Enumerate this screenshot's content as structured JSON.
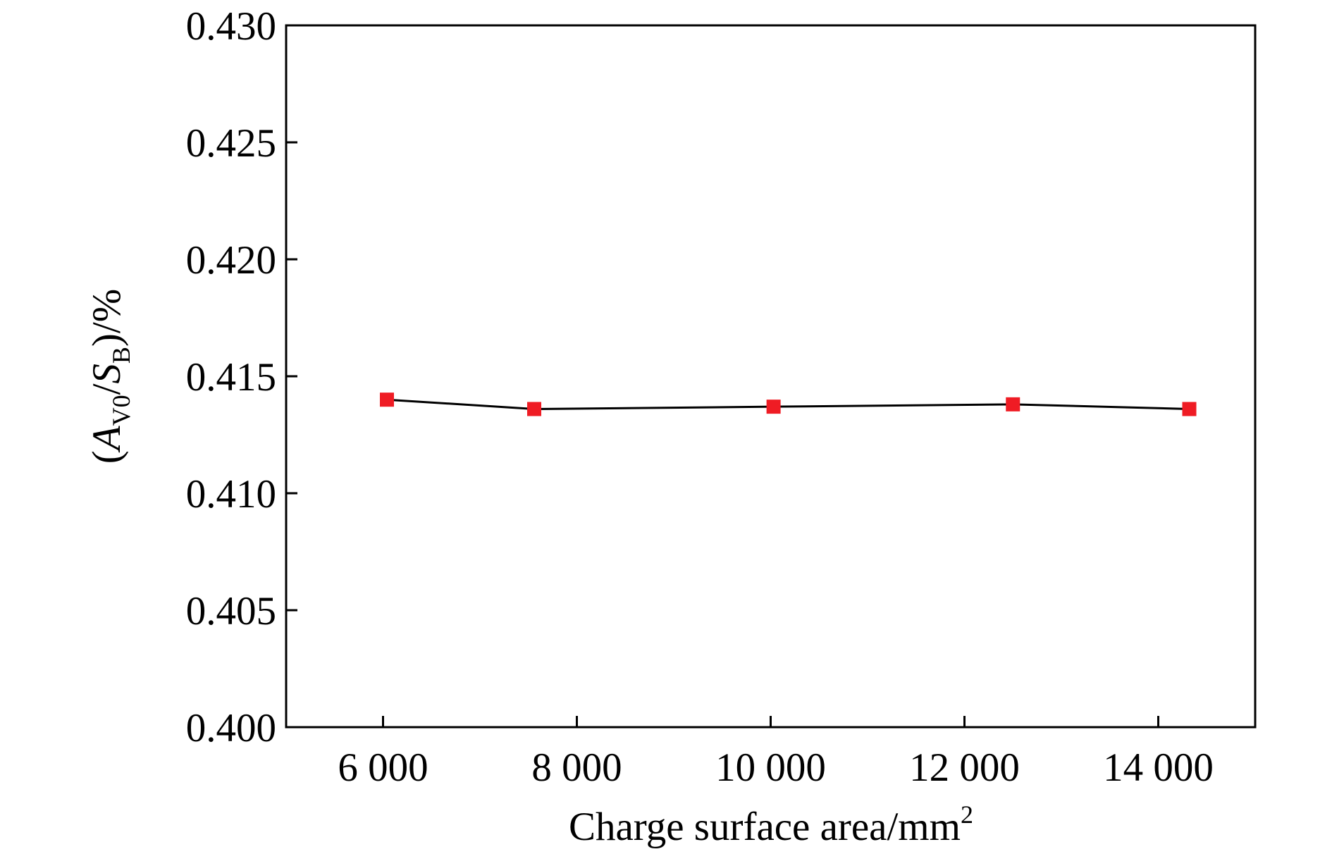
{
  "chart_data": {
    "type": "line",
    "title": "",
    "xlabel": {
      "text": "Charge surface area/mm",
      "superscript": "2"
    },
    "ylabel": {
      "open": "(",
      "a": "A",
      "a_sub": "V0",
      "slash": "/",
      "s": "S",
      "s_sub": "B",
      "close": ")/%"
    },
    "xlim": [
      5000,
      15000
    ],
    "ylim": [
      0.4,
      0.43
    ],
    "xticks": [
      6000,
      8000,
      10000,
      12000,
      14000
    ],
    "xtick_labels": [
      "6 000",
      "8 000",
      "10 000",
      "12 000",
      "14 000"
    ],
    "yticks": [
      0.4,
      0.405,
      0.41,
      0.415,
      0.42,
      0.425,
      0.43
    ],
    "ytick_labels": [
      "0.400",
      "0.405",
      "0.410",
      "0.415",
      "0.420",
      "0.425",
      "0.430"
    ],
    "grid": false,
    "series": [
      {
        "x": [
          6040,
          7560,
          10030,
          12500,
          14320
        ],
        "y": [
          0.414,
          0.4136,
          0.4137,
          0.4138,
          0.4136
        ],
        "line_color": "#000000",
        "marker": "square",
        "marker_color": "#ef1c24"
      }
    ]
  }
}
